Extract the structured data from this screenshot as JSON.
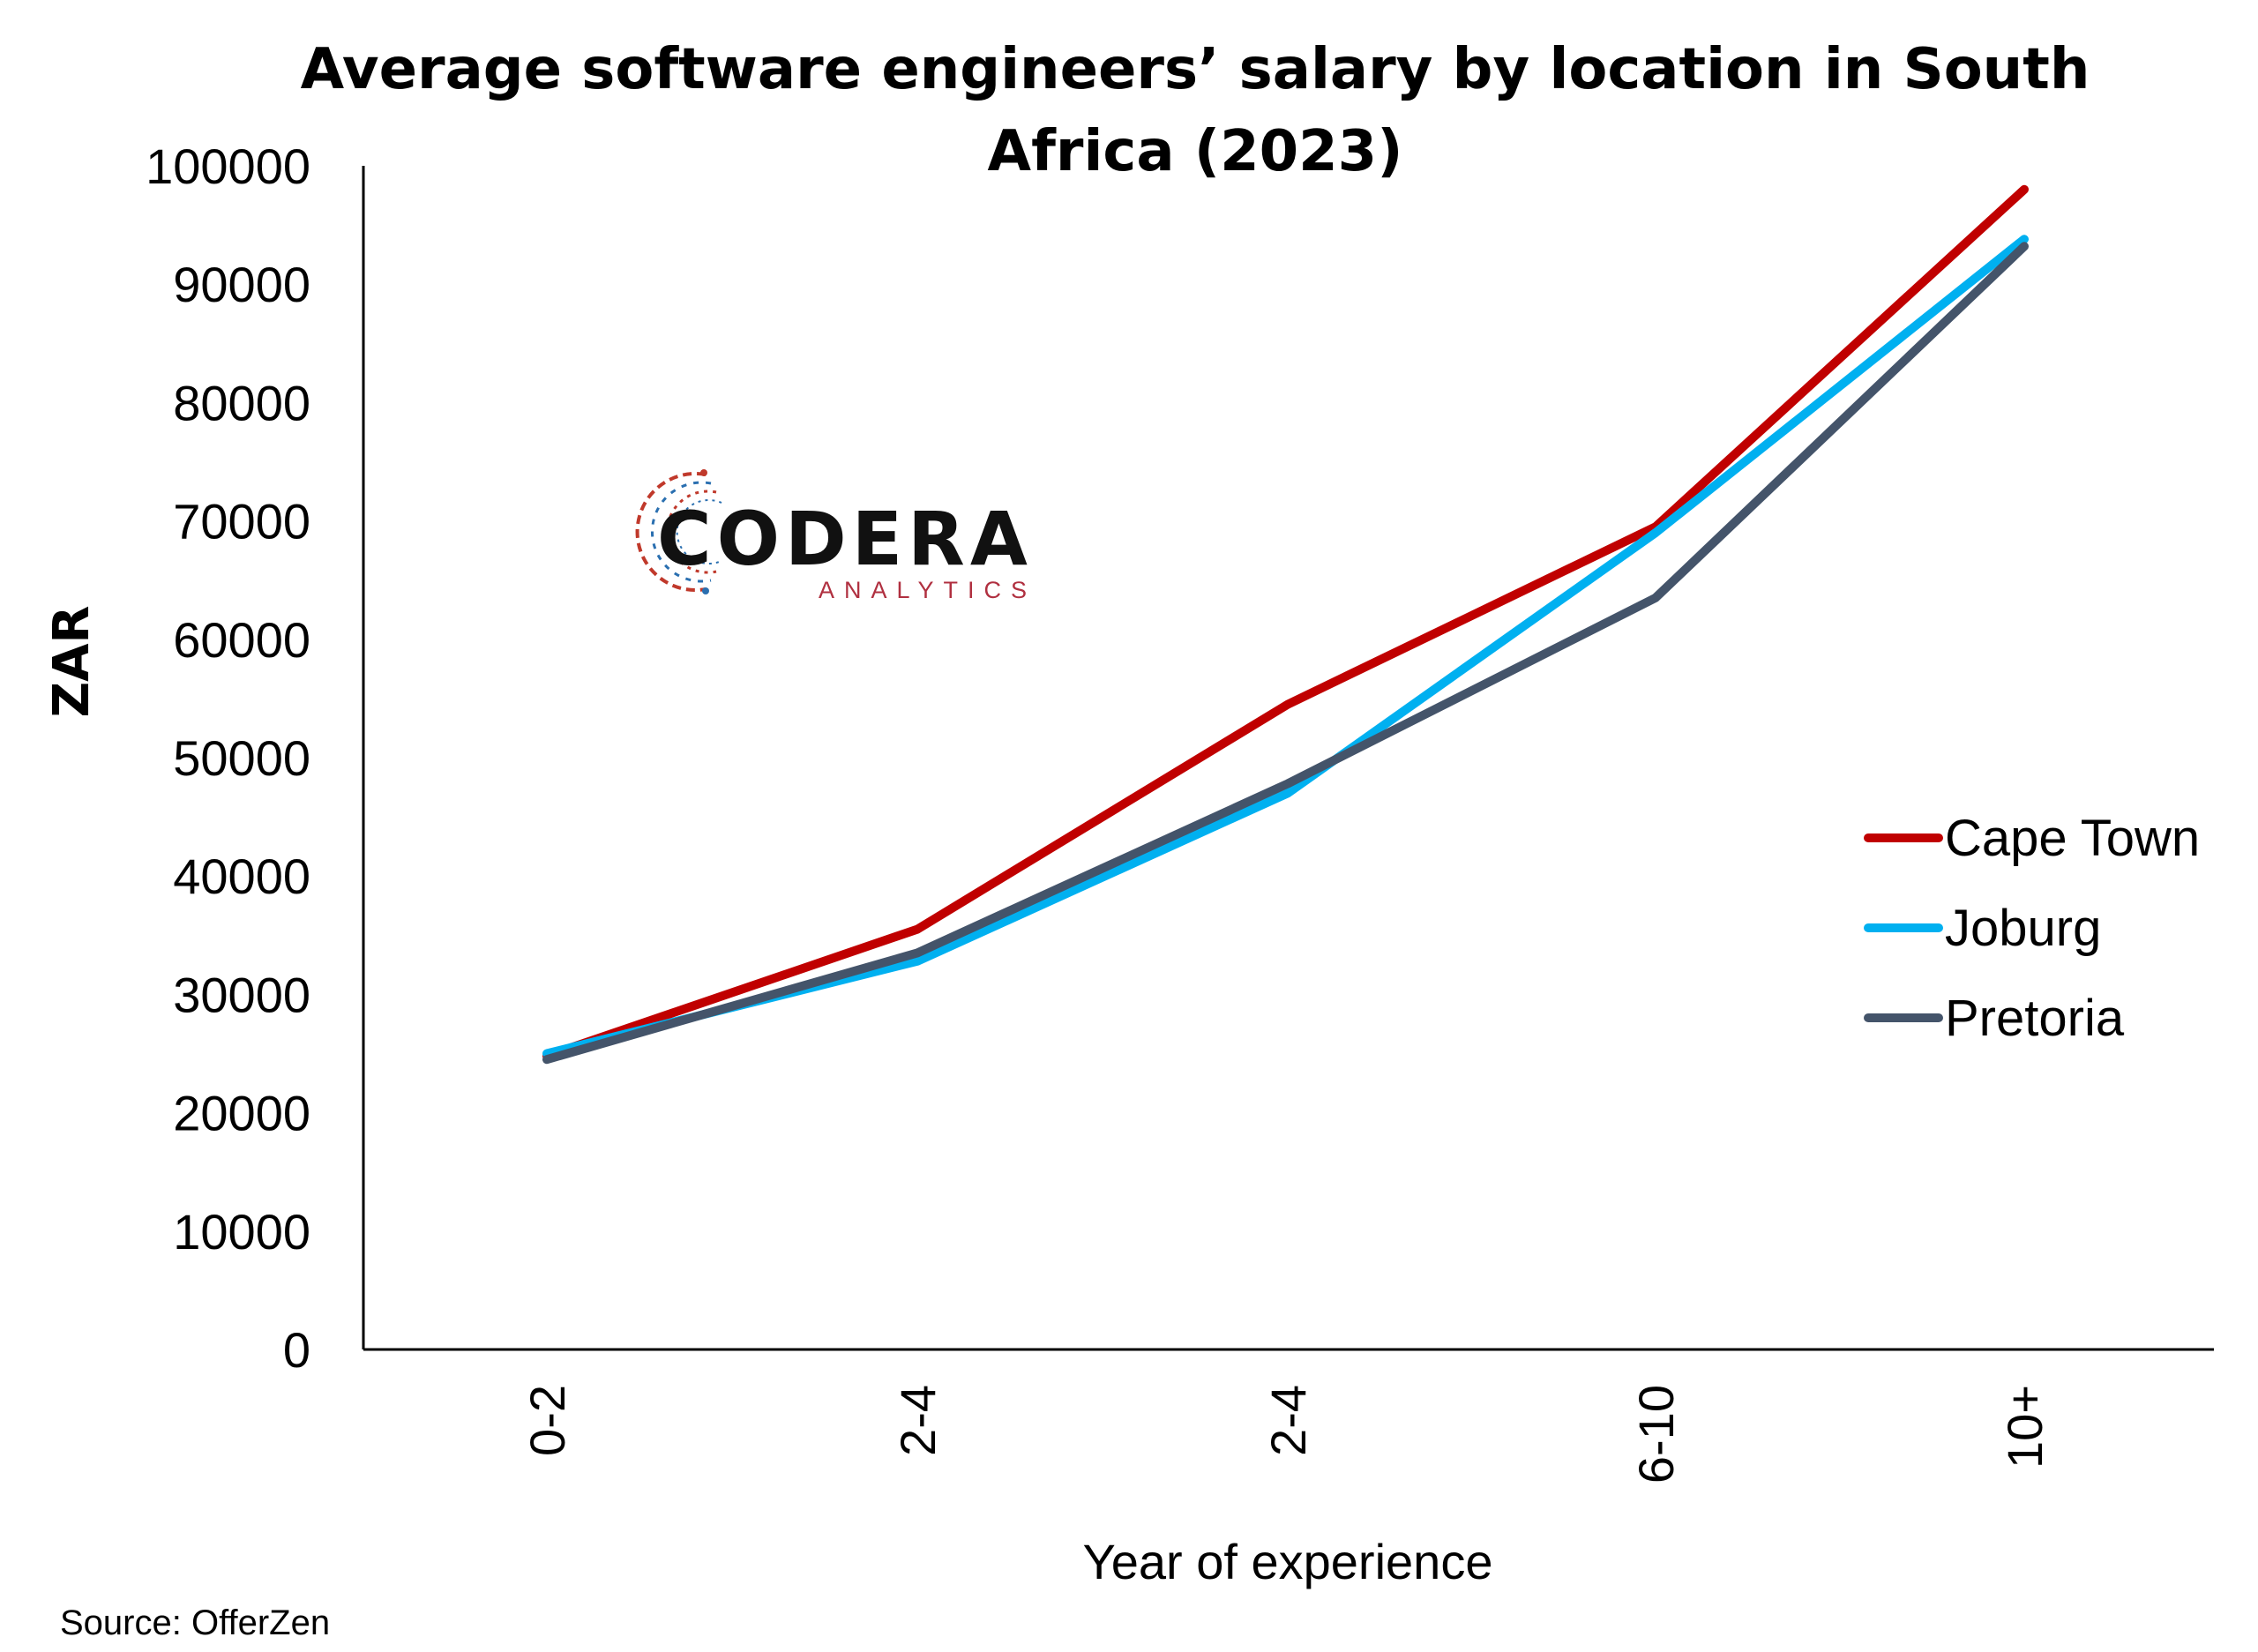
{
  "chart_data": {
    "type": "line",
    "title": "Average software engineers’ salary by location in South Africa (2023)",
    "title_lines": [
      "Average software engineers’ salary by location in South",
      "Africa (2023)"
    ],
    "xlabel": "Year of experience",
    "ylabel": "ZAR",
    "categories": [
      "0-2",
      "2-4",
      "2-4",
      "6-10",
      "10+"
    ],
    "ylim": [
      0,
      100000
    ],
    "yticks": [
      "0",
      "10000",
      "20000",
      "30000",
      "40000",
      "50000",
      "60000",
      "70000",
      "80000",
      "90000",
      "100000"
    ],
    "grid": false,
    "legend_position": "right",
    "series": [
      {
        "name": "Cape Town",
        "color": "#c00000",
        "values": [
          24800,
          35500,
          54500,
          69500,
          98000
        ]
      },
      {
        "name": "Joburg",
        "color": "#00b0f0",
        "values": [
          25000,
          32800,
          47000,
          69000,
          93800
        ]
      },
      {
        "name": "Pretoria",
        "color": "#44546a",
        "values": [
          24500,
          33500,
          47800,
          63500,
          93200
        ]
      }
    ]
  },
  "logo": {
    "name": "CODERA",
    "tagline": "ANALYTICS",
    "colors": [
      "#c0392b",
      "#2a6fb0"
    ]
  },
  "source": "Source: OfferZen"
}
